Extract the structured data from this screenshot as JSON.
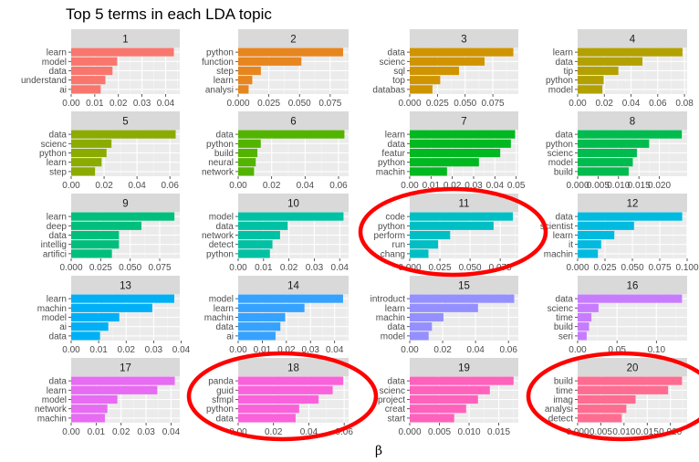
{
  "chart_data": {
    "type": "bar",
    "orientation": "horizontal",
    "title": "Top 5 terms in each LDA topic",
    "xlabel": "β",
    "ylabel": "",
    "grid": true,
    "panels": [
      {
        "topic": "1",
        "color": "#F8766D",
        "categories": [
          "learn",
          "model",
          "data",
          "understand",
          "ai"
        ],
        "values": [
          0.0435,
          0.0195,
          0.0175,
          0.0145,
          0.0125
        ],
        "xlim": [
          0,
          0.046
        ],
        "ticks": [
          0,
          0.01,
          0.02,
          0.03,
          0.04
        ],
        "tick_labels": [
          "0.00",
          "0.01",
          "0.02",
          "0.03",
          "0.04"
        ]
      },
      {
        "topic": "2",
        "color": "#E7851E",
        "categories": [
          "python",
          "function",
          "step",
          "learn",
          "analysi"
        ],
        "values": [
          0.0855,
          0.0515,
          0.0185,
          0.0115,
          0.0085
        ],
        "xlim": [
          0,
          0.09
        ],
        "ticks": [
          0,
          0.025,
          0.05,
          0.075
        ],
        "tick_labels": [
          "0.000",
          "0.025",
          "0.050",
          "0.075"
        ]
      },
      {
        "topic": "3",
        "color": "#D09400",
        "categories": [
          "data",
          "scienc",
          "sql",
          "top",
          "databas"
        ],
        "values": [
          0.0935,
          0.0675,
          0.0445,
          0.0275,
          0.0205
        ],
        "xlim": [
          0,
          0.098
        ],
        "ticks": [
          0,
          0.025,
          0.05,
          0.075
        ],
        "tick_labels": [
          "0.000",
          "0.025",
          "0.050",
          "0.075"
        ]
      },
      {
        "topic": "4",
        "color": "#B2A100",
        "categories": [
          "learn",
          "data",
          "tip",
          "python",
          "model"
        ],
        "values": [
          0.0785,
          0.0485,
          0.0305,
          0.0195,
          0.0185
        ],
        "xlim": [
          0,
          0.082
        ],
        "ticks": [
          0,
          0.02,
          0.04,
          0.06,
          0.08
        ],
        "tick_labels": [
          "0.00",
          "0.02",
          "0.04",
          "0.06",
          "0.08"
        ]
      },
      {
        "topic": "5",
        "color": "#8BAB00",
        "categories": [
          "data",
          "scienc",
          "python",
          "learn",
          "step"
        ],
        "values": [
          0.0635,
          0.0245,
          0.0215,
          0.0185,
          0.0145
        ],
        "xlim": [
          0,
          0.066
        ],
        "ticks": [
          0,
          0.02,
          0.04,
          0.06
        ],
        "tick_labels": [
          "0.00",
          "0.02",
          "0.04",
          "0.06"
        ]
      },
      {
        "topic": "6",
        "color": "#53B400",
        "categories": [
          "data",
          "python",
          "build",
          "neural",
          "network"
        ],
        "values": [
          0.0635,
          0.0135,
          0.0115,
          0.0105,
          0.0095
        ],
        "xlim": [
          0,
          0.066
        ],
        "ticks": [
          0,
          0.02,
          0.04,
          0.06
        ],
        "tick_labels": [
          "0.00",
          "0.02",
          "0.04",
          "0.06"
        ]
      },
      {
        "topic": "7",
        "color": "#00B81F",
        "categories": [
          "learn",
          "data",
          "featur",
          "python",
          "machin"
        ],
        "values": [
          0.0495,
          0.0475,
          0.0425,
          0.0325,
          0.0175
        ],
        "xlim": [
          0,
          0.051
        ],
        "ticks": [
          0,
          0.01,
          0.02,
          0.03,
          0.04,
          0.05
        ],
        "tick_labels": [
          "0.00",
          "0.01",
          "0.02",
          "0.03",
          "0.04",
          "0.05"
        ]
      },
      {
        "topic": "8",
        "color": "#00BB4E",
        "categories": [
          "data",
          "python",
          "scienc",
          "model",
          "build"
        ],
        "values": [
          0.0255,
          0.0175,
          0.0145,
          0.0135,
          0.0125
        ],
        "xlim": [
          0,
          0.0268
        ],
        "ticks": [
          0,
          0.005,
          0.01,
          0.015,
          0.02
        ],
        "tick_labels": [
          "0.000",
          "0.005",
          "0.010",
          "0.015",
          "0.020"
        ]
      },
      {
        "topic": "9",
        "color": "#00BF7D",
        "categories": [
          "learn",
          "deep",
          "data",
          "intellig",
          "artifici"
        ],
        "values": [
          0.0875,
          0.0595,
          0.0405,
          0.0405,
          0.0345
        ],
        "xlim": [
          0,
          0.092
        ],
        "ticks": [
          0,
          0.025,
          0.05,
          0.075
        ],
        "tick_labels": [
          "0.000",
          "0.025",
          "0.050",
          "0.075"
        ]
      },
      {
        "topic": "10",
        "color": "#00C1A3",
        "categories": [
          "model",
          "data",
          "network",
          "detect",
          "python"
        ],
        "values": [
          0.0415,
          0.0195,
          0.0165,
          0.0135,
          0.0125
        ],
        "xlim": [
          0,
          0.0435
        ],
        "ticks": [
          0,
          0.01,
          0.02,
          0.03,
          0.04
        ],
        "tick_labels": [
          "0.00",
          "0.01",
          "0.02",
          "0.03",
          "0.04"
        ]
      },
      {
        "topic": "11",
        "color": "#00BFC4",
        "categories": [
          "code",
          "python",
          "perform",
          "run",
          "chang"
        ],
        "values": [
          0.0855,
          0.0695,
          0.0335,
          0.0235,
          0.0155
        ],
        "xlim": [
          0,
          0.09
        ],
        "ticks": [
          0,
          0.025,
          0.05,
          0.075
        ],
        "tick_labels": [
          "0.000",
          "0.025",
          "0.050",
          "0.075"
        ]
      },
      {
        "topic": "12",
        "color": "#00BAE0",
        "categories": [
          "data",
          "scientist",
          "learn",
          "it",
          "machin"
        ],
        "values": [
          0.0955,
          0.0515,
          0.0335,
          0.0215,
          0.0185
        ],
        "xlim": [
          0,
          0.1
        ],
        "ticks": [
          0,
          0.025,
          0.05,
          0.075,
          0.1
        ],
        "tick_labels": [
          "0.000",
          "0.025",
          "0.050",
          "0.075",
          "0.100"
        ]
      },
      {
        "topic": "13",
        "color": "#00B0F6",
        "categories": [
          "learn",
          "machin",
          "model",
          "ai",
          "data"
        ],
        "values": [
          0.0375,
          0.0295,
          0.0175,
          0.0135,
          0.0105
        ],
        "xlim": [
          0,
          0.0395
        ],
        "ticks": [
          0,
          0.01,
          0.02,
          0.03,
          0.04
        ],
        "tick_labels": [
          "0.00",
          "0.01",
          "0.02",
          "0.03",
          "0.04"
        ]
      },
      {
        "topic": "14",
        "color": "#35A2FF",
        "categories": [
          "model",
          "learn",
          "machin",
          "data",
          "ai"
        ],
        "values": [
          0.0435,
          0.0275,
          0.0195,
          0.0175,
          0.0155
        ],
        "xlim": [
          0,
          0.0458
        ],
        "ticks": [
          0,
          0.01,
          0.02,
          0.03,
          0.04
        ],
        "tick_labels": [
          "0.00",
          "0.01",
          "0.02",
          "0.03",
          "0.04"
        ]
      },
      {
        "topic": "15",
        "color": "#9590FF",
        "categories": [
          "introduct",
          "learn",
          "machin",
          "data",
          "model"
        ],
        "values": [
          0.0635,
          0.0415,
          0.0205,
          0.0135,
          0.0115
        ],
        "xlim": [
          0,
          0.066
        ],
        "ticks": [
          0,
          0.02,
          0.04,
          0.06
        ],
        "tick_labels": [
          "0.00",
          "0.02",
          "0.04",
          "0.06"
        ]
      },
      {
        "topic": "16",
        "color": "#C77CFF",
        "categories": [
          "data",
          "scienc",
          "time",
          "build",
          "seri"
        ],
        "values": [
          0.1325,
          0.0265,
          0.0175,
          0.0145,
          0.0115
        ],
        "xlim": [
          0,
          0.139
        ],
        "ticks": [
          0,
          0.05,
          0.1
        ],
        "tick_labels": [
          "0.00",
          "0.05",
          "0.10"
        ]
      },
      {
        "topic": "17",
        "color": "#E76BF3",
        "categories": [
          "data",
          "learn",
          "model",
          "network",
          "machin"
        ],
        "values": [
          0.0415,
          0.0345,
          0.0185,
          0.0145,
          0.0135
        ],
        "xlim": [
          0,
          0.0435
        ],
        "ticks": [
          0,
          0.01,
          0.02,
          0.03,
          0.04
        ],
        "tick_labels": [
          "0.00",
          "0.01",
          "0.02",
          "0.03",
          "0.04"
        ]
      },
      {
        "topic": "18",
        "color": "#FA62DB",
        "categories": [
          "panda",
          "guid",
          "sfmpl",
          "python",
          "data"
        ],
        "values": [
          0.0595,
          0.0535,
          0.0455,
          0.0345,
          0.0325
        ],
        "xlim": [
          0,
          0.0625
        ],
        "ticks": [
          0,
          0.02,
          0.04,
          0.06
        ],
        "tick_labels": [
          "0.00",
          "0.02",
          "0.04",
          "0.06"
        ]
      },
      {
        "topic": "19",
        "color": "#FF62BC",
        "categories": [
          "data",
          "scienc",
          "project",
          "creat",
          "start"
        ],
        "values": [
          0.0175,
          0.0135,
          0.0115,
          0.0095,
          0.0075
        ],
        "xlim": [
          0,
          0.0183
        ],
        "ticks": [
          0,
          0.005,
          0.01,
          0.015
        ],
        "tick_labels": [
          "0.000",
          "0.005",
          "0.010",
          "0.015"
        ]
      },
      {
        "topic": "20",
        "color": "#FF6C91",
        "categories": [
          "build",
          "time",
          "imag",
          "analysi",
          "detect"
        ],
        "values": [
          0.0225,
          0.0195,
          0.0125,
          0.0105,
          0.0095
        ],
        "xlim": [
          0,
          0.0236
        ],
        "ticks": [
          0,
          0.005,
          0.01,
          0.015,
          0.02
        ],
        "tick_labels": [
          "0.000",
          "0.005",
          "0.010",
          "0.015",
          "0.020"
        ]
      }
    ],
    "highlights": [
      "11",
      "18",
      "20"
    ],
    "highlight_color": "#FF0000"
  }
}
